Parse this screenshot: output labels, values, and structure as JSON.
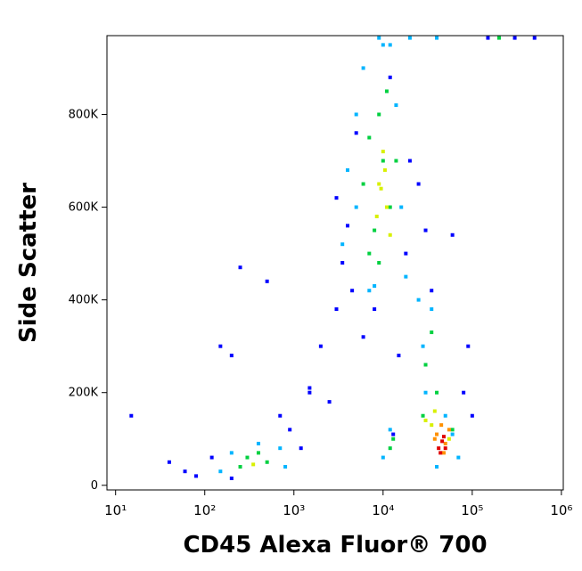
{
  "chart_data": {
    "type": "scatter",
    "x_label": "CD45 Alexa Fluor® 700",
    "y_label": "Side Scatter",
    "xscale": "log",
    "xlim": [
      8,
      1050000
    ],
    "xticks": [
      {
        "value": 10,
        "label": "10¹"
      },
      {
        "value": 100,
        "label": "10²"
      },
      {
        "value": 1000,
        "label": "10³"
      },
      {
        "value": 10000,
        "label": "10⁴"
      },
      {
        "value": 100000,
        "label": "10⁵"
      },
      {
        "value": 1000000,
        "label": "10⁶"
      }
    ],
    "ylim": [
      -10000,
      970000
    ],
    "yticks": [
      0,
      {
        "value": 200000,
        "label": "200K"
      },
      {
        "value": 400000,
        "label": "400K"
      },
      {
        "value": 600000,
        "label": "600K"
      },
      {
        "value": 800000,
        "label": "800K"
      }
    ],
    "series": [
      {
        "color": "#0000ff",
        "x": [
          15,
          40,
          60,
          80,
          120,
          150,
          200,
          250,
          500,
          700,
          900,
          1200,
          1500,
          2000,
          2500,
          3000,
          3500,
          4000,
          4500,
          5000,
          6000,
          8000,
          12000,
          15000,
          18000,
          20000,
          25000,
          30000,
          35000,
          60000,
          80000,
          100000,
          150000,
          300000,
          500000,
          1500,
          3000,
          200,
          90000,
          13000
        ],
        "values": [
          150000,
          50000,
          30000,
          20000,
          60000,
          300000,
          280000,
          470000,
          440000,
          150000,
          120000,
          80000,
          200000,
          300000,
          180000,
          380000,
          480000,
          560000,
          420000,
          760000,
          320000,
          380000,
          880000,
          280000,
          500000,
          700000,
          650000,
          550000,
          420000,
          540000,
          200000,
          150000,
          965000,
          965000,
          965000,
          210000,
          620000,
          15000,
          300000,
          110000
        ]
      },
      {
        "color": "#00b4ff",
        "x": [
          150,
          200,
          400,
          700,
          800,
          3500,
          4000,
          5000,
          6000,
          14000,
          16000,
          18000,
          8000,
          10000,
          12000,
          5000,
          7000,
          25000,
          28000,
          30000,
          35000,
          50000,
          60000,
          70000,
          40000,
          10000,
          12000,
          9000,
          20000,
          40000
        ],
        "values": [
          30000,
          70000,
          90000,
          80000,
          40000,
          520000,
          680000,
          800000,
          900000,
          820000,
          600000,
          450000,
          430000,
          950000,
          950000,
          600000,
          420000,
          400000,
          300000,
          200000,
          380000,
          150000,
          110000,
          60000,
          40000,
          60000,
          120000,
          965000,
          965000,
          965000
        ]
      },
      {
        "color": "#00d040",
        "x": [
          250,
          300,
          400,
          500,
          6000,
          7000,
          8000,
          9000,
          10000,
          12000,
          14000,
          7000,
          9000,
          11000,
          30000,
          35000,
          40000,
          28000,
          12000,
          60000,
          13000,
          200000
        ],
        "values": [
          40000,
          60000,
          70000,
          50000,
          650000,
          750000,
          550000,
          800000,
          700000,
          600000,
          700000,
          500000,
          480000,
          850000,
          260000,
          330000,
          200000,
          150000,
          80000,
          120000,
          100000,
          965000
        ]
      },
      {
        "color": "#d8f000",
        "x": [
          350,
          9000,
          10000,
          11000,
          8500,
          10500,
          35000,
          38000,
          55000,
          30000,
          12000,
          9500
        ],
        "values": [
          45000,
          650000,
          720000,
          600000,
          580000,
          680000,
          130000,
          160000,
          100000,
          140000,
          540000,
          640000
        ]
      },
      {
        "color": "#ff9000",
        "x": [
          40000,
          50000,
          45000,
          55000,
          38000,
          48000
        ],
        "values": [
          110000,
          90000,
          130000,
          120000,
          100000,
          70000
        ]
      },
      {
        "color": "#e00000",
        "x": [
          42000,
          46000,
          50000,
          44000,
          48000
        ],
        "values": [
          80000,
          95000,
          80000,
          70000,
          105000
        ]
      }
    ]
  }
}
